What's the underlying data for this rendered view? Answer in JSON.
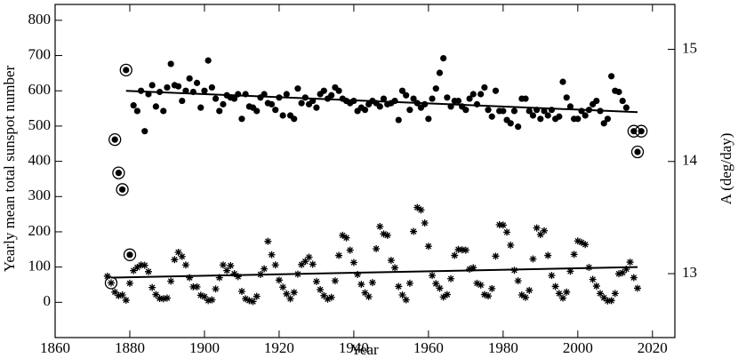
{
  "chart_data": {
    "type": "scatter",
    "xlabel": "Year",
    "ylabel": "Yearly mean total sunspot number",
    "y2label": "A (deg/day)",
    "xlim": [
      1860,
      2026
    ],
    "ylim": [
      -100,
      845
    ],
    "y2lim": [
      12.43,
      15.4
    ],
    "xticks": [
      1860,
      1880,
      1900,
      1920,
      1940,
      1960,
      1980,
      2000,
      2020
    ],
    "yticks": [
      0,
      100,
      200,
      300,
      400,
      500,
      600,
      700,
      800
    ],
    "y2ticks": [
      13,
      14,
      15
    ],
    "color": "#000000",
    "series": [
      {
        "marker": "star",
        "axis": "y",
        "x": [
          1874,
          1876,
          1877,
          1878,
          1879,
          1880,
          1881,
          1882,
          1883,
          1884,
          1885,
          1886,
          1887,
          1888,
          1889,
          1890,
          1891,
          1892,
          1893,
          1894,
          1895,
          1896,
          1897,
          1898,
          1899,
          1900,
          1901,
          1902,
          1903,
          1904,
          1905,
          1906,
          1907,
          1908,
          1909,
          1910,
          1911,
          1912,
          1913,
          1914,
          1915,
          1916,
          1917,
          1918,
          1919,
          1920,
          1921,
          1922,
          1923,
          1924,
          1925,
          1926,
          1927,
          1928,
          1929,
          1930,
          1931,
          1932,
          1933,
          1934,
          1935,
          1936,
          1937,
          1938,
          1939,
          1940,
          1941,
          1942,
          1943,
          1944,
          1945,
          1946,
          1947,
          1948,
          1949,
          1950,
          1951,
          1952,
          1953,
          1954,
          1955,
          1956,
          1957,
          1958,
          1959,
          1960,
          1961,
          1962,
          1963,
          1964,
          1965,
          1966,
          1967,
          1968,
          1969,
          1970,
          1971,
          1972,
          1973,
          1974,
          1975,
          1976,
          1977,
          1978,
          1979,
          1980,
          1981,
          1982,
          1983,
          1984,
          1985,
          1986,
          1987,
          1988,
          1989,
          1990,
          1991,
          1992,
          1993,
          1994,
          1995,
          1996,
          1997,
          1998,
          1999,
          2000,
          2001,
          2002,
          2003,
          2004,
          2005,
          2006,
          2007,
          2008,
          2009,
          2010,
          2011,
          2012,
          2013,
          2014,
          2015,
          2016
        ],
        "values": [
          74,
          29,
          19,
          21,
          6,
          54,
          90,
          99,
          106,
          105,
          87,
          42,
          22,
          11,
          10,
          12,
          60,
          121,
          142,
          130,
          106,
          70,
          44,
          44,
          20,
          16,
          5,
          7,
          38,
          70,
          106,
          90,
          104,
          81,
          73,
          31,
          10,
          5,
          2,
          17,
          79,
          95,
          173,
          135,
          106,
          63,
          43,
          24,
          10,
          28,
          80,
          107,
          116,
          128,
          108,
          59,
          36,
          19,
          9,
          14,
          61,
          133,
          190,
          183,
          148,
          113,
          79,
          51,
          27,
          16,
          56,
          152,
          215,
          194,
          190,
          119,
          98,
          45,
          21,
          7,
          54,
          201,
          269,
          262,
          225,
          159,
          76,
          53,
          40,
          15,
          22,
          67,
          133,
          150,
          149,
          148,
          94,
          98,
          54,
          49,
          22,
          18,
          39,
          131,
          220,
          219,
          199,
          162,
          91,
          61,
          21,
          14,
          34,
          123,
          211,
          192,
          203,
          133,
          76,
          45,
          25,
          12,
          29,
          88,
          136,
          174,
          170,
          164,
          99,
          65,
          46,
          25,
          13,
          4,
          5,
          25,
          81,
          84,
          94,
          114,
          70,
          40
        ]
      },
      {
        "marker": "ringed-star",
        "axis": "y",
        "x": [
          1875
        ],
        "values": [
          55
        ]
      },
      {
        "marker": "dot",
        "axis": "y2",
        "x": [
          1881,
          1882,
          1883,
          1884,
          1885,
          1886,
          1887,
          1888,
          1889,
          1890,
          1891,
          1892,
          1893,
          1894,
          1895,
          1896,
          1897,
          1898,
          1899,
          1900,
          1901,
          1902,
          1903,
          1904,
          1905,
          1906,
          1907,
          1908,
          1909,
          1910,
          1911,
          1912,
          1913,
          1914,
          1915,
          1916,
          1917,
          1918,
          1919,
          1920,
          1921,
          1922,
          1923,
          1924,
          1925,
          1926,
          1927,
          1928,
          1929,
          1930,
          1931,
          1932,
          1933,
          1934,
          1935,
          1936,
          1937,
          1938,
          1939,
          1940,
          1941,
          1942,
          1943,
          1944,
          1945,
          1946,
          1947,
          1948,
          1949,
          1950,
          1951,
          1952,
          1953,
          1954,
          1955,
          1956,
          1957,
          1958,
          1959,
          1960,
          1961,
          1962,
          1963,
          1964,
          1965,
          1966,
          1967,
          1968,
          1969,
          1970,
          1971,
          1972,
          1973,
          1974,
          1975,
          1976,
          1977,
          1978,
          1979,
          1980,
          1981,
          1982,
          1983,
          1984,
          1985,
          1986,
          1987,
          1988,
          1989,
          1990,
          1991,
          1992,
          1993,
          1994,
          1995,
          1996,
          1997,
          1998,
          1999,
          2000,
          2001,
          2002,
          2003,
          2004,
          2005,
          2006,
          2007,
          2008,
          2009,
          2010,
          2011,
          2012,
          2013
        ],
        "values": [
          14.5,
          14.45,
          14.63,
          14.27,
          14.6,
          14.68,
          14.49,
          14.62,
          14.45,
          14.66,
          14.87,
          14.68,
          14.67,
          14.54,
          14.63,
          14.74,
          14.62,
          14.7,
          14.48,
          14.63,
          14.9,
          14.66,
          14.56,
          14.45,
          14.51,
          14.59,
          14.57,
          14.56,
          14.6,
          14.38,
          14.6,
          14.49,
          14.48,
          14.45,
          14.57,
          14.6,
          14.52,
          14.51,
          14.46,
          14.57,
          14.41,
          14.6,
          14.41,
          14.38,
          14.65,
          14.52,
          14.57,
          14.51,
          14.54,
          14.48,
          14.6,
          14.63,
          14.56,
          14.59,
          14.66,
          14.63,
          14.56,
          14.54,
          14.52,
          14.54,
          14.45,
          14.48,
          14.46,
          14.51,
          14.54,
          14.52,
          14.49,
          14.56,
          14.51,
          14.52,
          14.54,
          14.37,
          14.63,
          14.59,
          14.46,
          14.56,
          14.52,
          14.48,
          14.51,
          14.38,
          14.56,
          14.65,
          14.79,
          14.92,
          14.57,
          14.49,
          14.54,
          14.54,
          14.49,
          14.46,
          14.56,
          14.6,
          14.51,
          14.6,
          14.66,
          14.46,
          14.4,
          14.63,
          14.45,
          14.45,
          14.37,
          14.34,
          14.45,
          14.31,
          14.56,
          14.56,
          14.45,
          14.41,
          14.46,
          14.38,
          14.45,
          14.41,
          14.46,
          14.38,
          14.4,
          14.71,
          14.57,
          14.49,
          14.38,
          14.38,
          14.45,
          14.41,
          14.46,
          14.51,
          14.54,
          14.45,
          14.34,
          14.38,
          14.76,
          14.63,
          14.62,
          14.54,
          14.48
        ]
      },
      {
        "marker": "ringed-dot",
        "axis": "y2",
        "x": [
          1876,
          1877,
          1878,
          1879,
          1880,
          2015,
          2016,
          2017
        ],
        "values": [
          14.195,
          13.898,
          13.75,
          14.815,
          13.168,
          14.27,
          14.085,
          14.27
        ]
      }
    ],
    "trend_lines": [
      {
        "axis": "y",
        "x": [
          1875,
          2016
        ],
        "values": [
          70,
          100
        ]
      },
      {
        "axis": "y2",
        "x": [
          1879,
          2016
        ],
        "values": [
          14.63,
          14.44
        ]
      }
    ]
  }
}
